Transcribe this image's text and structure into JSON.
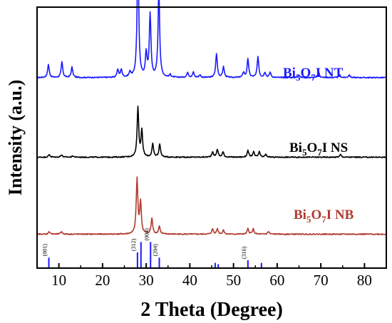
{
  "chart_data": {
    "type": "line",
    "title": "",
    "xlabel": "2 Theta (Degree)",
    "ylabel": "Intensity (a.u.)",
    "xlim": [
      5,
      85
    ],
    "xticks": [
      10,
      20,
      30,
      40,
      50,
      60,
      70,
      80
    ],
    "yticks_shown": false,
    "grid": false,
    "legend": "none",
    "series": [
      {
        "name": "Bi5O7I NT",
        "label_parts": [
          "Bi",
          "5",
          "O",
          "7",
          "I NT"
        ],
        "color": "#1a1aff",
        "baseline": 0.73,
        "peaks": [
          [
            7.6,
            0.05
          ],
          [
            10.7,
            0.06
          ],
          [
            13.0,
            0.04
          ],
          [
            23.5,
            0.03
          ],
          [
            24.3,
            0.03
          ],
          [
            26.3,
            0.02
          ],
          [
            28.1,
            0.49
          ],
          [
            30.0,
            0.09
          ],
          [
            30.9,
            0.24
          ],
          [
            32.9,
            0.34
          ],
          [
            35.5,
            0.01
          ],
          [
            39.5,
            0.02
          ],
          [
            40.8,
            0.02
          ],
          [
            42.3,
            0.01
          ],
          [
            46.1,
            0.09
          ],
          [
            47.7,
            0.04
          ],
          [
            52.3,
            0.02
          ],
          [
            53.3,
            0.07
          ],
          [
            55.6,
            0.08
          ],
          [
            57.2,
            0.02
          ],
          [
            58.4,
            0.02
          ],
          [
            65.0,
            0.01
          ],
          [
            69.5,
            0.02
          ],
          [
            74.3,
            0.01
          ],
          [
            76.5,
            0.01
          ]
        ]
      },
      {
        "name": "Bi5O7I NS",
        "label_parts": [
          "Bi",
          "5",
          "O",
          "7",
          "I NS"
        ],
        "color": "#000000",
        "baseline": 0.425,
        "peaks": [
          [
            7.8,
            0.01
          ],
          [
            10.6,
            0.01
          ],
          [
            13.2,
            0.005
          ],
          [
            28.1,
            0.19
          ],
          [
            29.0,
            0.1
          ],
          [
            31.5,
            0.05
          ],
          [
            33.1,
            0.05
          ],
          [
            45.2,
            0.02
          ],
          [
            46.3,
            0.03
          ],
          [
            47.6,
            0.02
          ],
          [
            53.3,
            0.025
          ],
          [
            54.6,
            0.02
          ],
          [
            55.9,
            0.02
          ],
          [
            57.4,
            0.01
          ],
          [
            74.5,
            0.01
          ]
        ]
      },
      {
        "name": "Bi5O7I NB",
        "label_parts": [
          "Bi",
          "5",
          "O",
          "7",
          "I NB"
        ],
        "color": "#b03a2e",
        "baseline": 0.13,
        "peaks": [
          [
            7.8,
            0.01
          ],
          [
            10.6,
            0.01
          ],
          [
            27.9,
            0.21
          ],
          [
            28.7,
            0.12
          ],
          [
            31.3,
            0.06
          ],
          [
            33.0,
            0.03
          ],
          [
            45.2,
            0.02
          ],
          [
            46.3,
            0.02
          ],
          [
            47.7,
            0.015
          ],
          [
            53.3,
            0.02
          ],
          [
            54.5,
            0.02
          ],
          [
            58.0,
            0.01
          ]
        ]
      }
    ],
    "reference_lines": [
      {
        "x": 7.7,
        "height": 0.04,
        "label": "(001)"
      },
      {
        "x": 28.0,
        "height": 0.06,
        "label": "(312)"
      },
      {
        "x": 28.8,
        "height": 0.1,
        "label": ""
      },
      {
        "x": 31.0,
        "height": 0.1,
        "label": "(004)"
      },
      {
        "x": 33.0,
        "height": 0.04,
        "label": "(204)"
      },
      {
        "x": 45.8,
        "height": 0.02,
        "label": ""
      },
      {
        "x": 46.5,
        "height": 0.015,
        "label": ""
      },
      {
        "x": 53.3,
        "height": 0.03,
        "label": "(316)"
      },
      {
        "x": 56.4,
        "height": 0.02,
        "label": ""
      }
    ],
    "reference_color": "#1a1aff"
  }
}
